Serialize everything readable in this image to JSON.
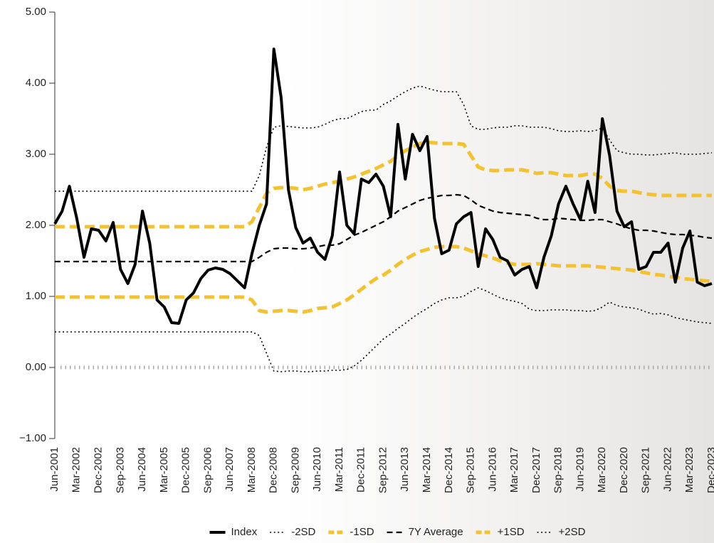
{
  "chart_data": {
    "type": "line",
    "categories": [
      "Jun-2001",
      null,
      null,
      "Mar-2002",
      null,
      null,
      "Dec-2002",
      null,
      null,
      "Sep-2003",
      null,
      null,
      "Jun-2004",
      null,
      null,
      "Mar-2005",
      null,
      null,
      "Dec-2005",
      null,
      null,
      "Sep-2006",
      null,
      null,
      "Jun-2007",
      null,
      null,
      "Mar-2008",
      null,
      null,
      "Dec-2008",
      null,
      null,
      "Sep-2009",
      null,
      null,
      "Jun-2010",
      null,
      null,
      "Mar-2011",
      null,
      null,
      "Dec-2011",
      null,
      null,
      "Sep-2012",
      null,
      null,
      "Jun-2013",
      null,
      null,
      "Mar-2014",
      null,
      null,
      "Dec-2014",
      null,
      null,
      "Sep-2015",
      null,
      null,
      "Jun-2016",
      null,
      null,
      "Mar-2017",
      null,
      null,
      "Dec-2017",
      null,
      null,
      "Sep-2018",
      null,
      null,
      "Jun-2019",
      null,
      null,
      "Mar-2020",
      null,
      null,
      "Dec-2020",
      null,
      null,
      "Sep-2021",
      null,
      null,
      "Jun-2022",
      null,
      null,
      "Mar-2023",
      null,
      null,
      "Dec-2023"
    ],
    "series": [
      {
        "name": "Index",
        "color": "#000000",
        "style": "solid",
        "values": [
          2.02,
          2.2,
          2.55,
          2.1,
          1.55,
          1.95,
          1.93,
          1.78,
          2.04,
          1.38,
          1.18,
          1.45,
          2.2,
          1.75,
          0.95,
          0.85,
          0.63,
          0.62,
          0.95,
          1.05,
          1.25,
          1.37,
          1.4,
          1.38,
          1.32,
          1.22,
          1.12,
          1.6,
          2.0,
          2.3,
          4.48,
          3.8,
          2.5,
          1.97,
          1.75,
          1.82,
          1.62,
          1.52,
          1.85,
          2.75,
          2.0,
          1.88,
          2.65,
          2.6,
          2.72,
          2.55,
          2.12,
          3.42,
          2.65,
          3.28,
          3.05,
          3.25,
          2.1,
          1.6,
          1.65,
          2.02,
          2.12,
          2.18,
          1.42,
          1.95,
          1.8,
          1.55,
          1.5,
          1.3,
          1.38,
          1.42,
          1.12,
          1.55,
          1.85,
          2.3,
          2.55,
          2.3,
          2.08,
          2.62,
          2.18,
          3.5,
          2.98,
          2.2,
          1.98,
          2.05,
          1.38,
          1.42,
          1.62,
          1.62,
          1.75,
          1.2,
          1.68,
          1.92,
          1.2,
          1.15,
          1.18
        ]
      },
      {
        "name": "-2SD",
        "color": "#000000",
        "style": "dotted",
        "values": [
          0.5,
          0.5,
          0.5,
          0.5,
          0.5,
          0.5,
          0.5,
          0.5,
          0.5,
          0.5,
          0.5,
          0.5,
          0.5,
          0.5,
          0.5,
          0.5,
          0.5,
          0.5,
          0.5,
          0.5,
          0.5,
          0.5,
          0.5,
          0.5,
          0.5,
          0.5,
          0.5,
          0.5,
          0.45,
          0.2,
          -0.05,
          -0.06,
          -0.05,
          -0.05,
          -0.06,
          -0.06,
          -0.05,
          -0.05,
          -0.04,
          -0.04,
          -0.03,
          0.02,
          0.1,
          0.2,
          0.3,
          0.4,
          0.47,
          0.55,
          0.62,
          0.7,
          0.77,
          0.83,
          0.9,
          0.95,
          0.98,
          0.98,
          1.0,
          1.07,
          1.12,
          1.08,
          1.03,
          0.98,
          0.95,
          0.93,
          0.9,
          0.82,
          0.8,
          0.8,
          0.81,
          0.81,
          0.81,
          0.8,
          0.8,
          0.79,
          0.8,
          0.85,
          0.92,
          0.87,
          0.85,
          0.84,
          0.82,
          0.78,
          0.75,
          0.76,
          0.74,
          0.7,
          0.68,
          0.66,
          0.64,
          0.63,
          0.62
        ]
      },
      {
        "name": "-1SD",
        "color": "#f2c230",
        "style": "dashed-thick",
        "values": [
          0.99,
          0.99,
          0.99,
          0.99,
          0.99,
          0.99,
          0.99,
          0.99,
          0.99,
          0.99,
          0.99,
          0.99,
          0.99,
          0.99,
          0.99,
          0.99,
          0.99,
          0.99,
          0.99,
          0.99,
          0.99,
          0.99,
          0.99,
          0.99,
          0.99,
          0.99,
          0.99,
          0.95,
          0.8,
          0.78,
          0.79,
          0.8,
          0.8,
          0.79,
          0.78,
          0.8,
          0.83,
          0.84,
          0.85,
          0.9,
          0.95,
          1.02,
          1.1,
          1.18,
          1.25,
          1.3,
          1.37,
          1.45,
          1.52,
          1.58,
          1.63,
          1.66,
          1.69,
          1.7,
          1.7,
          1.7,
          1.68,
          1.64,
          1.6,
          1.57,
          1.54,
          1.5,
          1.47,
          1.45,
          1.45,
          1.45,
          1.46,
          1.45,
          1.44,
          1.43,
          1.43,
          1.43,
          1.43,
          1.43,
          1.42,
          1.41,
          1.4,
          1.39,
          1.38,
          1.37,
          1.35,
          1.33,
          1.31,
          1.3,
          1.28,
          1.27,
          1.25,
          1.24,
          1.23,
          1.22,
          1.21
        ]
      },
      {
        "name": "7Y Average",
        "color": "#000000",
        "style": "dashed",
        "values": [
          1.49,
          1.49,
          1.49,
          1.49,
          1.49,
          1.49,
          1.49,
          1.49,
          1.49,
          1.49,
          1.49,
          1.49,
          1.49,
          1.49,
          1.49,
          1.49,
          1.49,
          1.49,
          1.49,
          1.49,
          1.49,
          1.49,
          1.49,
          1.49,
          1.49,
          1.49,
          1.49,
          1.49,
          1.55,
          1.62,
          1.67,
          1.68,
          1.68,
          1.67,
          1.67,
          1.68,
          1.7,
          1.72,
          1.72,
          1.74,
          1.8,
          1.86,
          1.9,
          1.95,
          2.0,
          2.05,
          2.12,
          2.2,
          2.25,
          2.3,
          2.35,
          2.38,
          2.4,
          2.42,
          2.42,
          2.43,
          2.42,
          2.36,
          2.28,
          2.24,
          2.2,
          2.18,
          2.17,
          2.16,
          2.15,
          2.14,
          2.1,
          2.08,
          2.08,
          2.1,
          2.09,
          2.08,
          2.07,
          2.07,
          2.08,
          2.08,
          2.05,
          2.02,
          1.98,
          1.95,
          1.93,
          1.93,
          1.92,
          1.9,
          1.88,
          1.87,
          1.87,
          1.86,
          1.85,
          1.83,
          1.82
        ]
      },
      {
        "name": "+1SD",
        "color": "#f2c230",
        "style": "dashed-thick",
        "values": [
          1.98,
          1.98,
          1.98,
          1.98,
          1.98,
          1.98,
          1.98,
          1.98,
          1.98,
          1.98,
          1.98,
          1.98,
          1.98,
          1.98,
          1.98,
          1.98,
          1.98,
          1.98,
          1.98,
          1.98,
          1.98,
          1.98,
          1.98,
          1.98,
          1.98,
          1.98,
          1.98,
          2.05,
          2.25,
          2.45,
          2.52,
          2.53,
          2.53,
          2.52,
          2.5,
          2.52,
          2.55,
          2.58,
          2.6,
          2.62,
          2.65,
          2.68,
          2.72,
          2.76,
          2.8,
          2.85,
          2.9,
          2.98,
          3.05,
          3.1,
          3.15,
          3.17,
          3.16,
          3.15,
          3.15,
          3.15,
          3.14,
          2.98,
          2.82,
          2.78,
          2.77,
          2.77,
          2.78,
          2.78,
          2.78,
          2.76,
          2.73,
          2.74,
          2.74,
          2.72,
          2.7,
          2.7,
          2.7,
          2.72,
          2.72,
          2.66,
          2.55,
          2.49,
          2.48,
          2.48,
          2.46,
          2.44,
          2.43,
          2.42,
          2.42,
          2.42,
          2.42,
          2.42,
          2.42,
          2.42,
          2.42
        ]
      },
      {
        "name": "+2SD",
        "color": "#000000",
        "style": "dotted",
        "values": [
          2.48,
          2.48,
          2.48,
          2.48,
          2.48,
          2.48,
          2.48,
          2.48,
          2.48,
          2.48,
          2.48,
          2.48,
          2.48,
          2.48,
          2.48,
          2.48,
          2.48,
          2.48,
          2.48,
          2.48,
          2.48,
          2.48,
          2.48,
          2.48,
          2.48,
          2.48,
          2.48,
          2.48,
          2.7,
          3.1,
          3.38,
          3.4,
          3.39,
          3.38,
          3.37,
          3.37,
          3.38,
          3.42,
          3.47,
          3.5,
          3.5,
          3.55,
          3.6,
          3.62,
          3.62,
          3.7,
          3.75,
          3.82,
          3.88,
          3.93,
          3.96,
          3.93,
          3.9,
          3.88,
          3.88,
          3.88,
          3.7,
          3.4,
          3.35,
          3.35,
          3.37,
          3.38,
          3.38,
          3.4,
          3.4,
          3.38,
          3.38,
          3.38,
          3.36,
          3.33,
          3.32,
          3.32,
          3.33,
          3.32,
          3.33,
          3.37,
          3.2,
          3.05,
          3.02,
          3.0,
          3.0,
          2.99,
          2.99,
          3.0,
          3.01,
          3.02,
          3.0,
          3.0,
          3.0,
          3.01,
          3.02
        ]
      }
    ],
    "ylim": [
      -1,
      5
    ],
    "yticks": [
      {
        "value": -1,
        "label": "−1.00"
      },
      {
        "value": 0,
        "label": "0.00"
      },
      {
        "value": 1,
        "label": "1.00"
      },
      {
        "value": 2,
        "label": "2.00"
      },
      {
        "value": 3,
        "label": "3.00"
      },
      {
        "value": 4,
        "label": "4.00"
      },
      {
        "value": 5,
        "label": "5.00"
      }
    ],
    "legend": "bottom"
  }
}
